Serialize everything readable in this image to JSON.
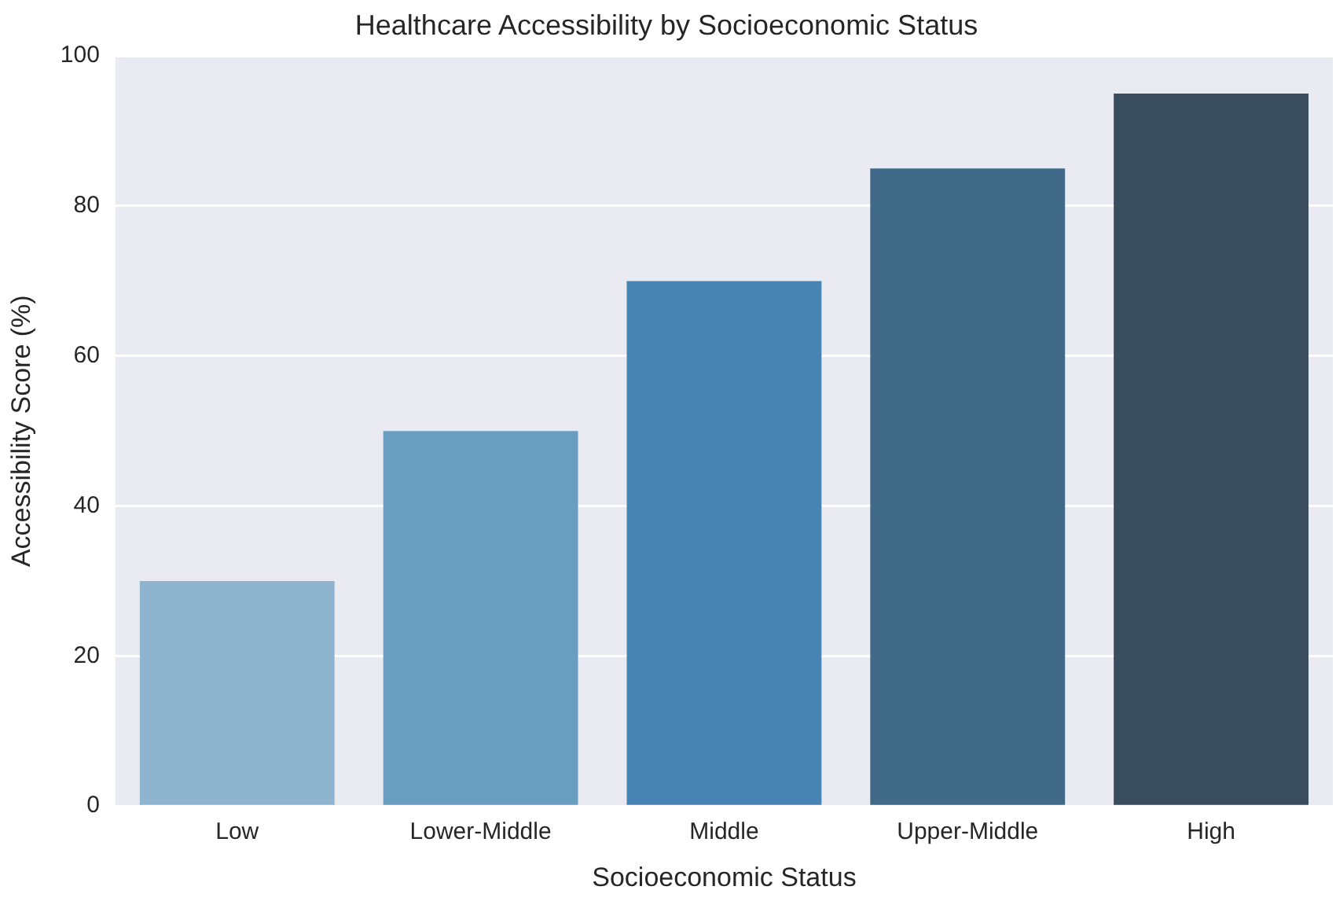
{
  "chart_data": {
    "type": "bar",
    "title": "Healthcare Accessibility by Socioeconomic Status",
    "xlabel": "Socioeconomic Status",
    "ylabel": "Accessibility Score (%)",
    "categories": [
      "Low",
      "Lower-Middle",
      "Middle",
      "Upper-Middle",
      "High"
    ],
    "values": [
      30,
      50,
      70,
      85,
      95
    ],
    "colors": [
      "#8fb4d0",
      "#6a9ec0",
      "#4884b3",
      "#416a89",
      "#3a4d5e"
    ],
    "ylim": [
      0,
      100
    ],
    "yticks": [
      0,
      20,
      40,
      60,
      80,
      100
    ],
    "grid": "y"
  }
}
